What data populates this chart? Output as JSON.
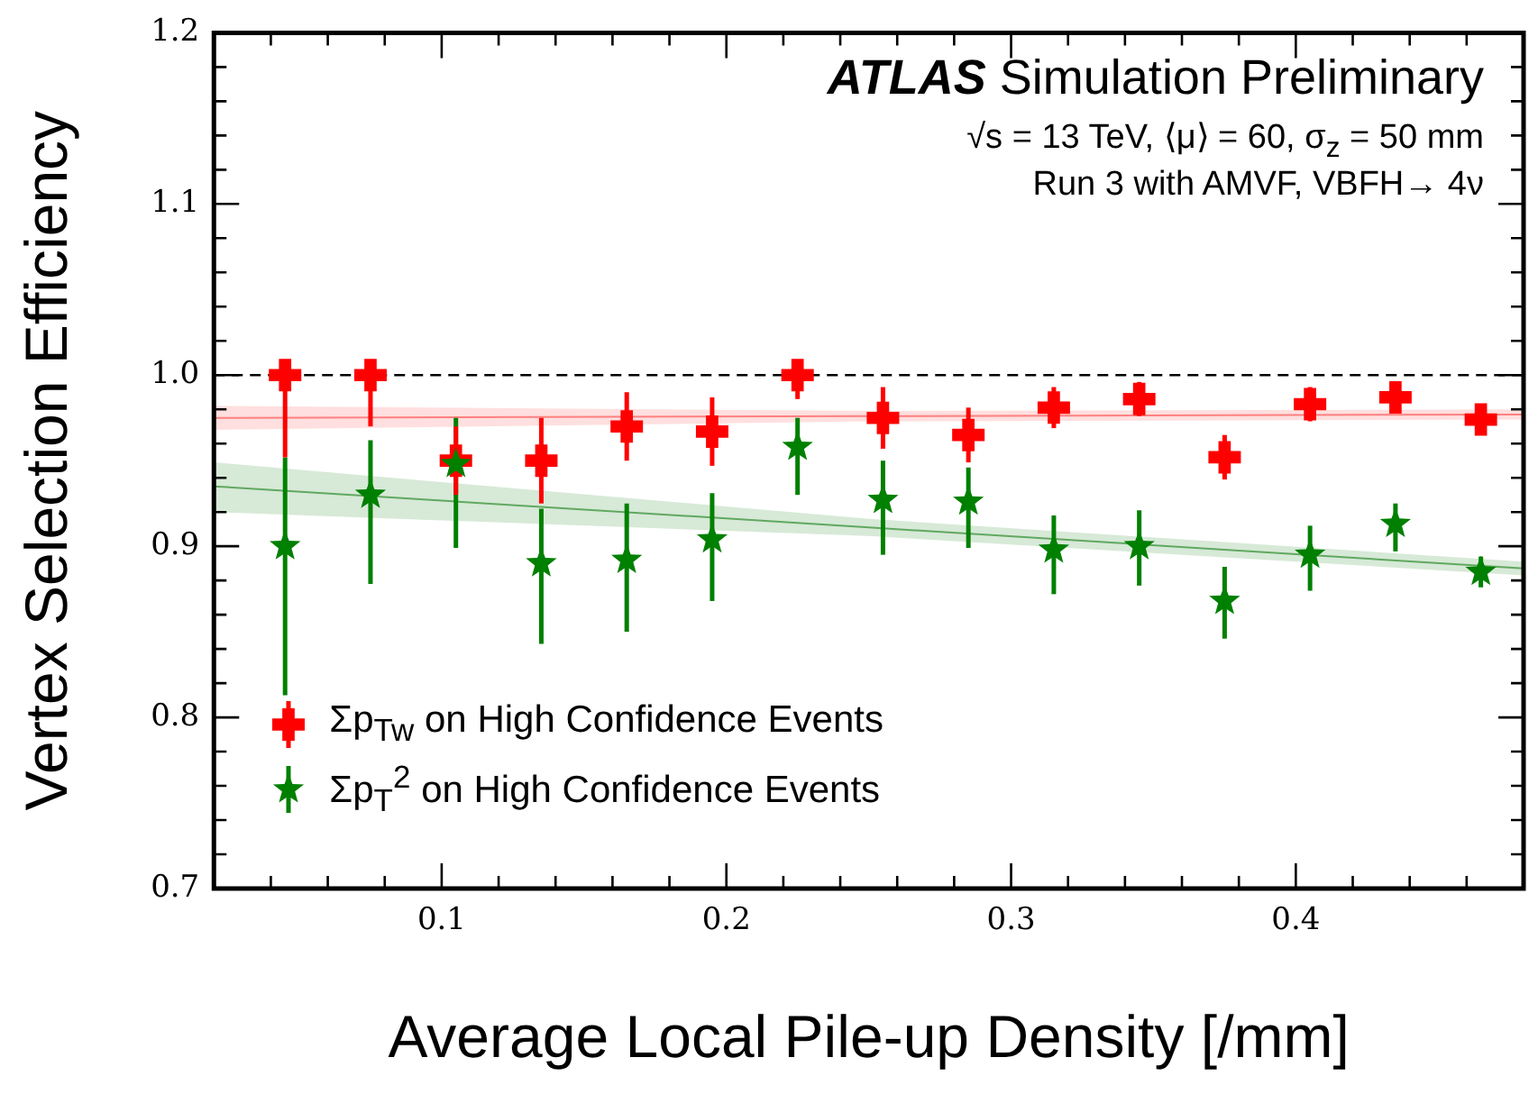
{
  "chart_data": {
    "type": "scatter",
    "title": "ATLAS Simulation Preliminary",
    "annotations": [
      "√s = 13 TeV, ⟨μ⟩ = 60, σ$_{z}$ = 50 mm",
      "Run 3 with AMVF, VBFH→ 4ν"
    ],
    "xlabel": "Average Local Pile-up Density [/mm]",
    "ylabel": "Vertex Selection Efficiency",
    "x": [
      0.045,
      0.075,
      0.105,
      0.135,
      0.165,
      0.195,
      0.225,
      0.255,
      0.285,
      0.315,
      0.345,
      0.375,
      0.405,
      0.435,
      0.465
    ],
    "series": [
      {
        "name": "Σp$_{Tw}$ on High Confidence Events",
        "marker": "cross",
        "color": "#ff0000",
        "values": [
          1.0,
          1.0,
          0.95,
          0.95,
          0.97,
          0.967,
          1.0,
          0.975,
          0.965,
          0.981,
          0.986,
          0.952,
          0.983,
          0.987,
          0.974
        ],
        "errors": [
          [
            0.952,
            1.0
          ],
          [
            0.97,
            1.0
          ],
          0.02,
          0.025,
          0.02,
          0.02,
          [
            0.986,
            1.0
          ],
          0.018,
          0.016,
          0.012,
          0.01,
          0.013,
          0.01,
          0.008,
          0.006
        ]
      },
      {
        "name": "Σp$_{T}$$^{2}$ on High Confidence Events",
        "marker": "star",
        "color": "#008000",
        "values": [
          0.9,
          0.93,
          0.948,
          0.89,
          0.892,
          0.904,
          0.958,
          0.927,
          0.926,
          0.898,
          0.9,
          0.868,
          0.895,
          0.913,
          0.885
        ],
        "errors": [
          [
            0.813,
            0.952
          ],
          [
            0.878,
            0.962
          ],
          [
            0.899,
            0.975
          ],
          [
            0.843,
            0.922
          ],
          [
            0.85,
            0.925
          ],
          [
            0.868,
            0.931
          ],
          [
            0.93,
            0.975
          ],
          [
            0.895,
            0.95
          ],
          [
            0.899,
            0.946
          ],
          [
            0.872,
            0.918
          ],
          [
            0.877,
            0.921
          ],
          [
            0.846,
            0.888
          ],
          [
            0.874,
            0.912
          ],
          [
            0.897,
            0.925
          ],
          [
            0.876,
            0.894
          ]
        ]
      },
      {
        "type": "line",
        "color": "#ff8080",
        "x": [
          0.02,
          0.25,
          0.48
        ],
        "values": [
          0.975,
          0.976,
          0.977
        ],
        "lower": [
          0.968,
          0.973,
          0.974
        ],
        "upper": [
          0.982,
          0.979,
          0.98
        ]
      },
      {
        "type": "line",
        "color": "#60a860",
        "x": [
          0.02,
          0.25,
          0.48
        ],
        "values": [
          0.935,
          0.911,
          0.887
        ],
        "lower": [
          0.92,
          0.906,
          0.883
        ],
        "upper": [
          0.949,
          0.916,
          0.891
        ]
      }
    ],
    "ref_lines": [
      {
        "axis": "y",
        "value": 1.0,
        "color": "#000000",
        "line_style": "dashed"
      }
    ],
    "xlim": [
      0.02,
      0.48
    ],
    "xticks": [
      {
        "value": 0.02,
        "label": null
      },
      {
        "value": 0.04,
        "label": null
      },
      {
        "value": 0.06,
        "label": null
      },
      {
        "value": 0.08,
        "label": null
      },
      0.1,
      {
        "value": 0.12,
        "label": null
      },
      {
        "value": 0.14,
        "label": null
      },
      {
        "value": 0.16,
        "label": null
      },
      {
        "value": 0.18,
        "label": null
      },
      0.2,
      {
        "value": 0.22,
        "label": null
      },
      {
        "value": 0.24,
        "label": null
      },
      {
        "value": 0.26,
        "label": null
      },
      {
        "value": 0.28,
        "label": null
      },
      0.3,
      {
        "value": 0.32,
        "label": null
      },
      {
        "value": 0.34,
        "label": null
      },
      {
        "value": 0.36,
        "label": null
      },
      {
        "value": 0.38,
        "label": null
      },
      0.4,
      {
        "value": 0.42,
        "label": null
      },
      {
        "value": 0.44,
        "label": null
      },
      {
        "value": 0.46,
        "label": null
      },
      {
        "value": 0.48,
        "label": null
      }
    ],
    "ylim": [
      0.7,
      1.2
    ],
    "yticks": [
      0.7,
      {
        "value": 0.72,
        "label": null
      },
      {
        "value": 0.74,
        "label": null
      },
      {
        "value": 0.76,
        "label": null
      },
      {
        "value": 0.78,
        "label": null
      },
      0.8,
      {
        "value": 0.82,
        "label": null
      },
      {
        "value": 0.84,
        "label": null
      },
      {
        "value": 0.86,
        "label": null
      },
      {
        "value": 0.88,
        "label": null
      },
      0.9,
      {
        "value": 0.92,
        "label": null
      },
      {
        "value": 0.94,
        "label": null
      },
      {
        "value": 0.96,
        "label": null
      },
      {
        "value": 0.98,
        "label": null
      },
      {
        "value": 1.0,
        "label": "1.0"
      },
      {
        "value": 1.02,
        "label": null
      },
      {
        "value": 1.04,
        "label": null
      },
      {
        "value": 1.06,
        "label": null
      },
      {
        "value": 1.08,
        "label": null
      },
      1.1,
      {
        "value": 1.12,
        "label": null
      },
      {
        "value": 1.14,
        "label": null
      },
      {
        "value": 1.16,
        "label": null
      },
      {
        "value": 1.18,
        "label": null
      },
      1.2
    ],
    "grid": false,
    "legend": "bottom left",
    "line_style": "solid"
  }
}
